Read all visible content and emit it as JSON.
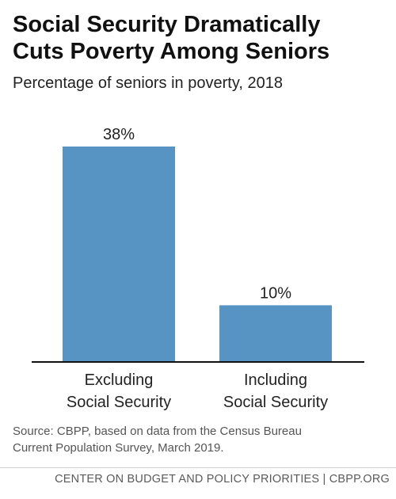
{
  "title_lines": [
    "Social Security Dramatically",
    "Cuts Poverty Among Seniors"
  ],
  "subtitle": "Percentage of seniors in poverty, 2018",
  "chart_data": {
    "type": "bar",
    "categories": [
      [
        "Excluding",
        "Social Security"
      ],
      [
        "Including",
        "Social Security"
      ]
    ],
    "values": [
      38,
      10
    ],
    "value_labels": [
      "38%",
      "10%"
    ],
    "ylim": [
      0,
      38
    ],
    "grid": false,
    "bar_color": "#5793c3"
  },
  "source_lines": [
    "Source: CBPP, based on data from the Census Bureau",
    "Current Population Survey, March 2019."
  ],
  "footer": "CENTER ON BUDGET AND POLICY PRIORITIES | CBPP.ORG"
}
